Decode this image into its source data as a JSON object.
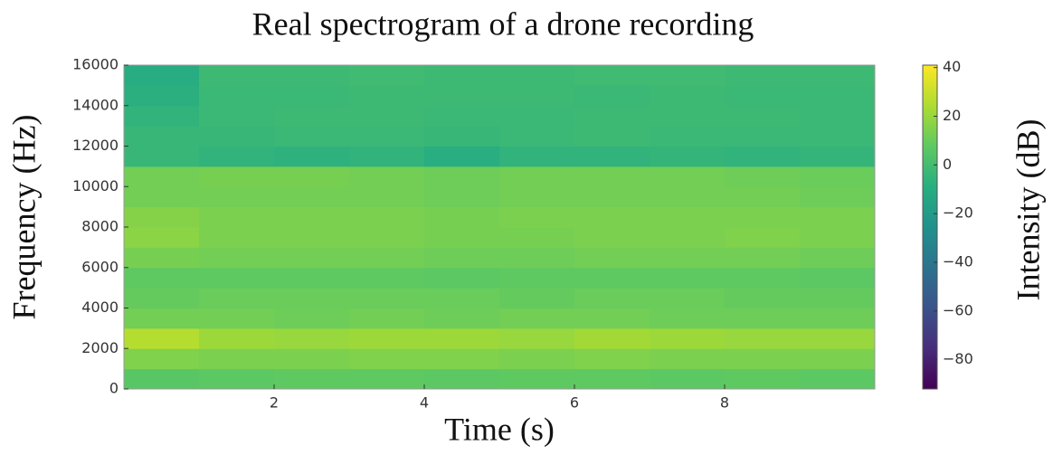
{
  "chart_data": {
    "type": "heatmap",
    "title": "Real spectrogram of a drone recording",
    "x_label": "Time (s)",
    "y_label": "Frequency (Hz)",
    "colorbar_label": "Intensity (dB)",
    "colormap": "viridis",
    "x": [
      0.5,
      1.5,
      2.5,
      3.5,
      4.5,
      5.5,
      6.5,
      7.5,
      8.5,
      9.5
    ],
    "y": [
      500,
      1500,
      2500,
      3500,
      4500,
      5500,
      6500,
      7500,
      8500,
      9500,
      10500,
      11500,
      12500,
      13500,
      14500,
      15500
    ],
    "z": [
      [
        6,
        7,
        8,
        8,
        7,
        8,
        8,
        7,
        8,
        7
      ],
      [
        15,
        14,
        14,
        15,
        15,
        14,
        15,
        14,
        14,
        14
      ],
      [
        26,
        21,
        20,
        21,
        21,
        20,
        22,
        21,
        20,
        20
      ],
      [
        12,
        12,
        11,
        12,
        11,
        12,
        12,
        11,
        11,
        11
      ],
      [
        9,
        10,
        10,
        10,
        10,
        9,
        10,
        10,
        9,
        9
      ],
      [
        8,
        8,
        8,
        8,
        7,
        8,
        8,
        8,
        8,
        7
      ],
      [
        13,
        12,
        12,
        12,
        11,
        11,
        12,
        12,
        12,
        11
      ],
      [
        17,
        14,
        14,
        14,
        13,
        13,
        14,
        14,
        15,
        14
      ],
      [
        16,
        14,
        14,
        14,
        13,
        14,
        14,
        14,
        14,
        14
      ],
      [
        12,
        12,
        12,
        12,
        11,
        12,
        12,
        12,
        12,
        11
      ],
      [
        12,
        13,
        13,
        12,
        11,
        12,
        12,
        12,
        11,
        10
      ],
      [
        -4,
        -6,
        -7,
        -6,
        -9,
        -6,
        -6,
        -5,
        -6,
        -5
      ],
      [
        -4,
        -4,
        -3,
        -3,
        -4,
        -3,
        -2,
        -3,
        -3,
        -3
      ],
      [
        -6,
        -3,
        -2,
        -2,
        -3,
        -3,
        -2,
        -2,
        -2,
        -3
      ],
      [
        -8,
        -3,
        -3,
        -2,
        -2,
        -2,
        -3,
        -2,
        -3,
        -3
      ],
      [
        -10,
        -2,
        -2,
        -1,
        -2,
        -2,
        -1,
        -1,
        -2,
        -2
      ]
    ],
    "xlim": [
      0,
      10
    ],
    "ylim": [
      0,
      16000
    ],
    "xticks": [
      2,
      4,
      6,
      8
    ],
    "yticks": [
      0,
      2000,
      4000,
      6000,
      8000,
      10000,
      12000,
      14000,
      16000
    ],
    "clim": [
      -92,
      41
    ],
    "cticks": [
      40,
      20,
      0,
      {
        "value": -20,
        "label": "−20"
      },
      {
        "value": -40,
        "label": "−40"
      },
      {
        "value": -60,
        "label": "−60"
      },
      {
        "value": -80,
        "label": "−80"
      }
    ]
  }
}
